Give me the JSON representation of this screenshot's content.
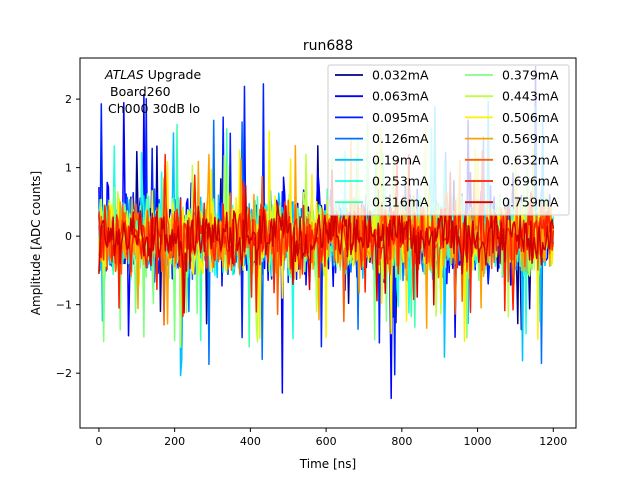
{
  "chart_data": {
    "type": "line",
    "title": "run688",
    "xlabel": "Time [ns]",
    "ylabel": "Amplitude [ADC counts]",
    "xlim": [
      -50,
      1260
    ],
    "ylim": [
      -2.8,
      2.6
    ],
    "xticks": [
      0,
      200,
      400,
      600,
      800,
      1000,
      1200
    ],
    "yticks": [
      -2,
      -1,
      0,
      1,
      2
    ],
    "legend_position": "top-right",
    "annotation": {
      "italic": "ATLAS",
      "line1_rest": " Upgrade",
      "line2": "Board260",
      "line3": "Ch000 30dB lo"
    },
    "sampling": {
      "start_ns": 0,
      "end_ns": 1200,
      "step_ns": 3.125
    },
    "series": [
      {
        "name": "0.032mA",
        "color": "#00008f",
        "noise_rms": 0.3,
        "spike_max": 1.45
      },
      {
        "name": "0.063mA",
        "color": "#0000ff",
        "noise_rms": 0.55,
        "spike_max": 2.5
      },
      {
        "name": "0.095mA",
        "color": "#0020ff",
        "noise_rms": 0.45,
        "spike_max": 2.3
      },
      {
        "name": "0.126mA",
        "color": "#0070ff",
        "noise_rms": 0.4,
        "spike_max": 1.9
      },
      {
        "name": "0.19mA",
        "color": "#00c0ff",
        "noise_rms": 0.42,
        "spike_max": 2.1
      },
      {
        "name": "0.253mA",
        "color": "#20ffdf",
        "noise_rms": 0.42,
        "spike_max": 1.6
      },
      {
        "name": "0.316mA",
        "color": "#40ffaf",
        "noise_rms": 0.42,
        "spike_max": 1.7
      },
      {
        "name": "0.379mA",
        "color": "#80ff80",
        "noise_rms": 0.42,
        "spike_max": 1.7
      },
      {
        "name": "0.443mA",
        "color": "#bfff40",
        "noise_rms": 0.42,
        "spike_max": 1.7
      },
      {
        "name": "0.506mA",
        "color": "#ffef00",
        "noise_rms": 0.42,
        "spike_max": 1.6
      },
      {
        "name": "0.569mA",
        "color": "#ffa000",
        "noise_rms": 0.4,
        "spike_max": 1.5
      },
      {
        "name": "0.632mA",
        "color": "#ff6000",
        "noise_rms": 0.38,
        "spike_max": 1.4
      },
      {
        "name": "0.696mA",
        "color": "#ff2000",
        "noise_rms": 0.36,
        "spike_max": 1.3
      },
      {
        "name": "0.759mA",
        "color": "#cf0000",
        "noise_rms": 0.33,
        "spike_max": 1.2
      }
    ]
  }
}
